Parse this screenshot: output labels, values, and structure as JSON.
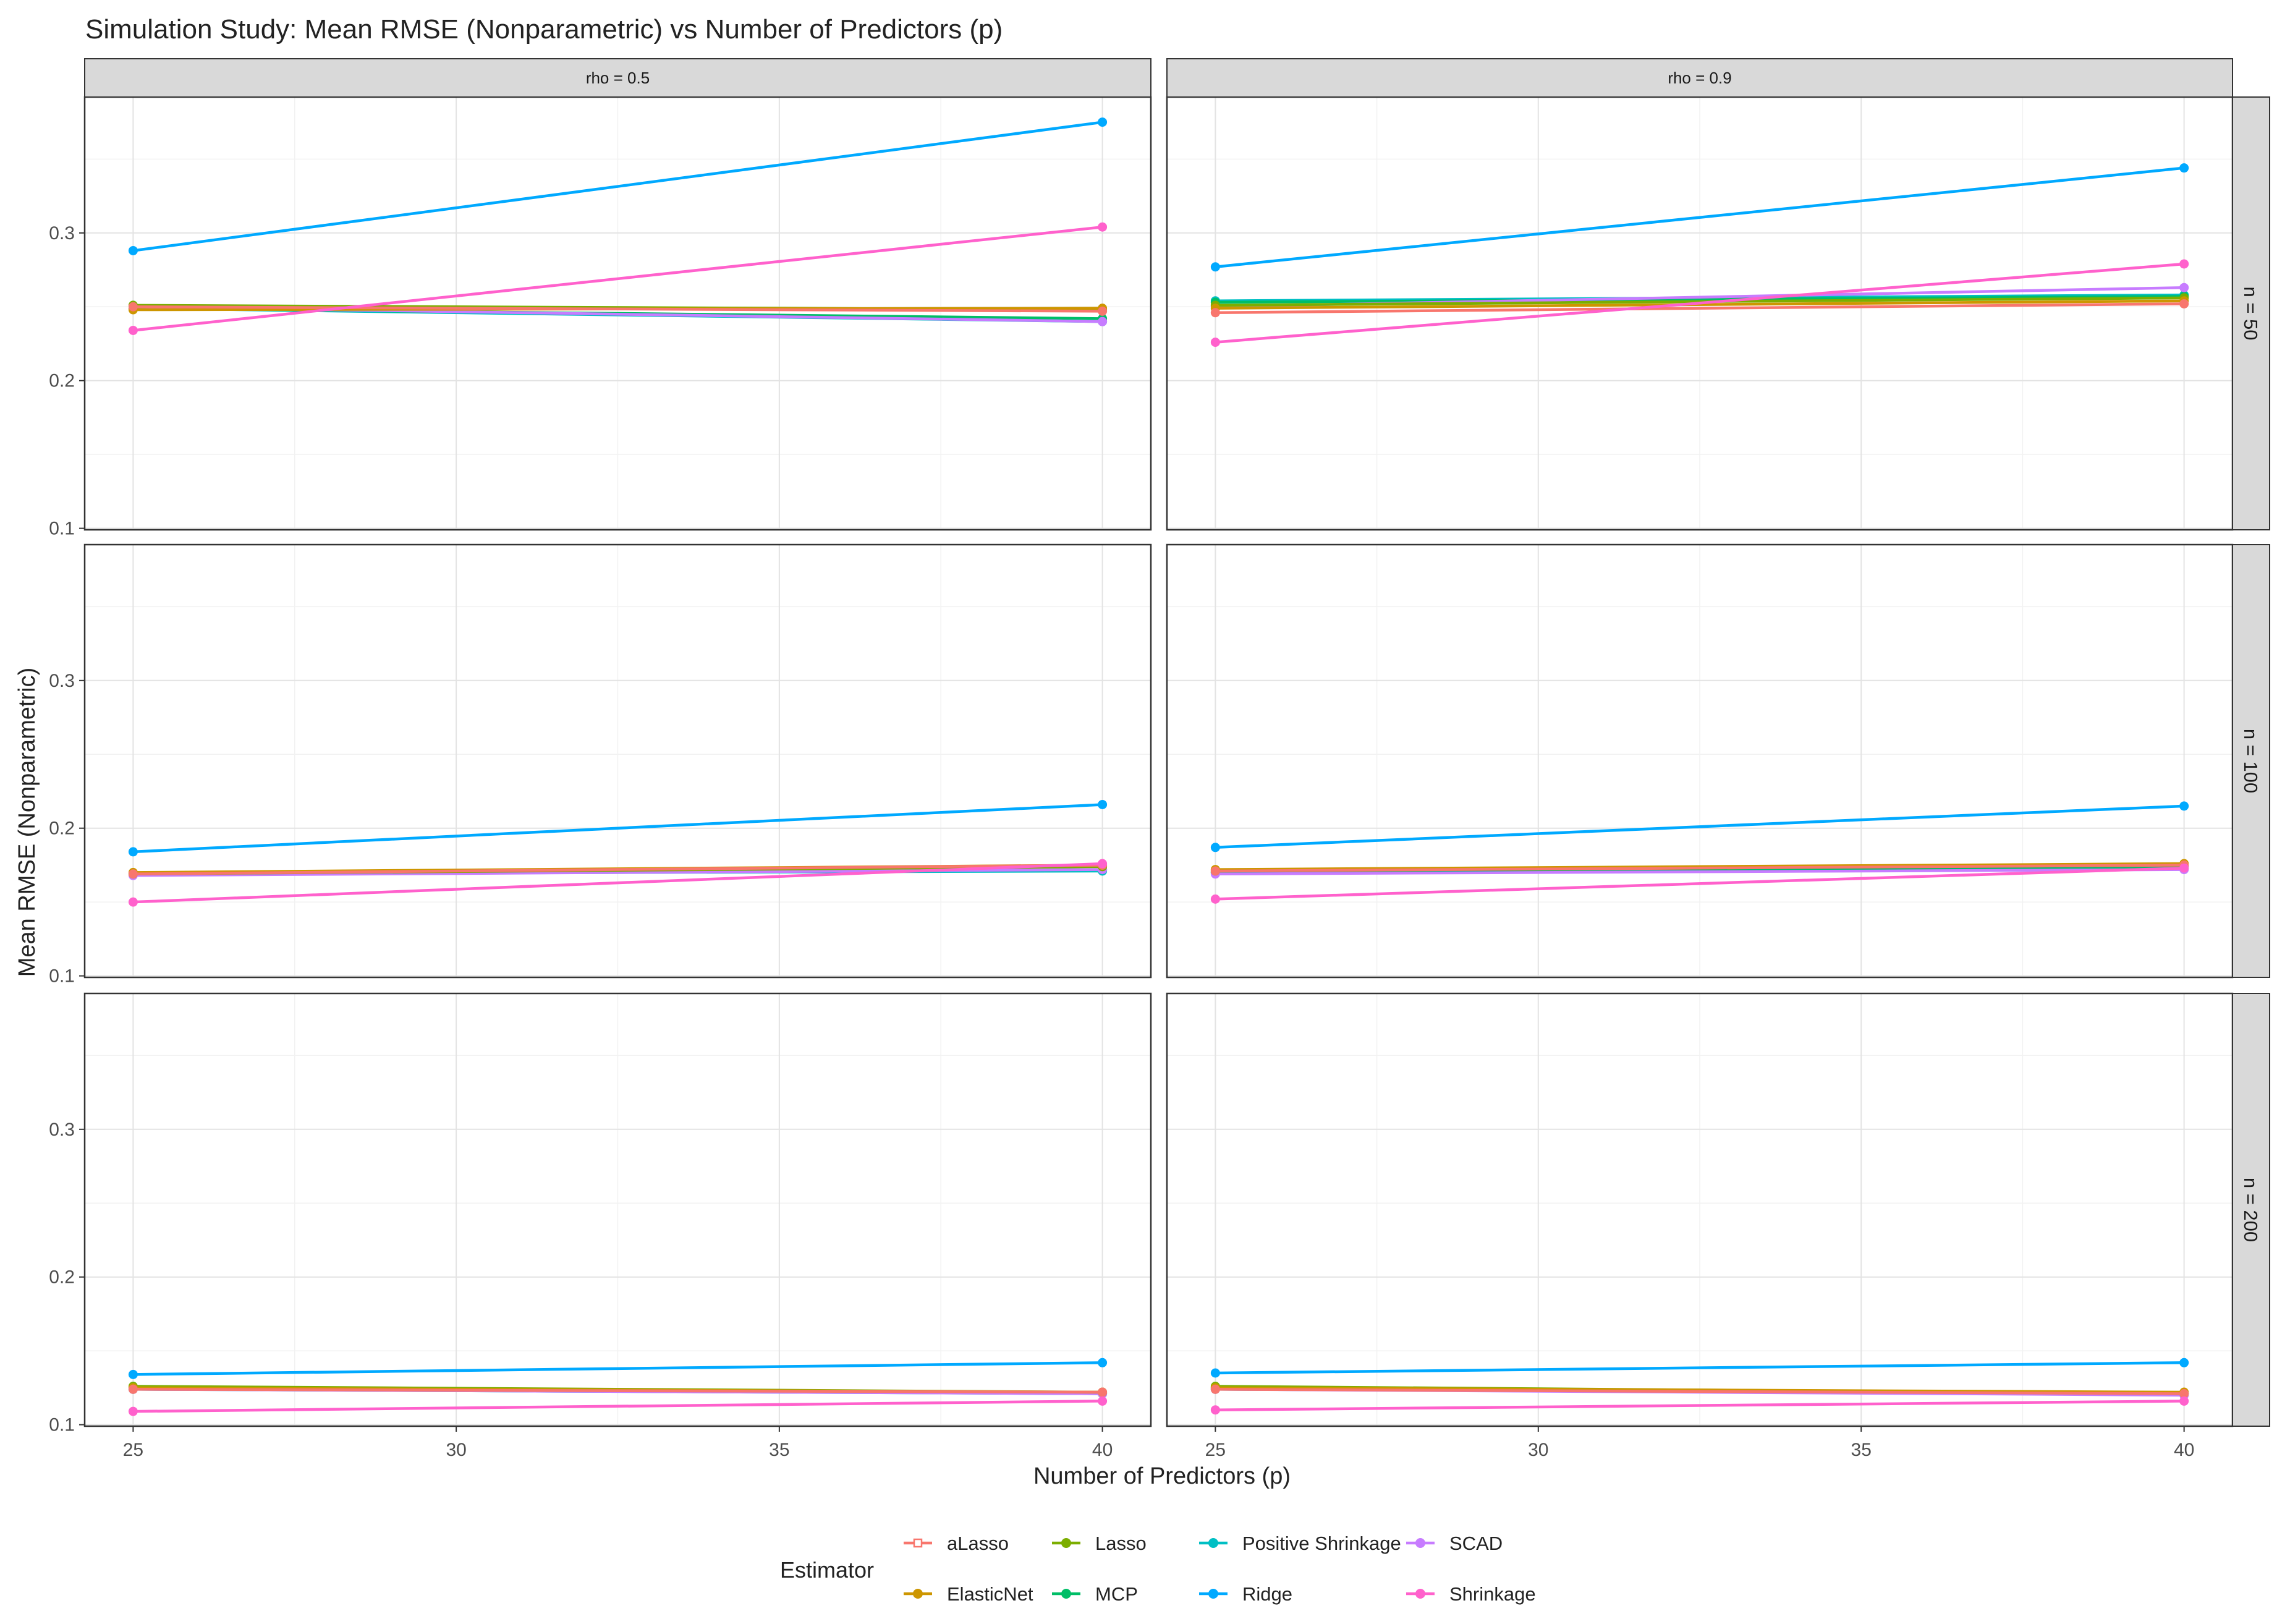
{
  "chart_data": {
    "type": "line",
    "title": "Simulation Study: Mean RMSE (Nonparametric) vs Number of Predictors (p)",
    "xlabel": "Number of Predictors (p)",
    "ylabel": "Mean RMSE (Nonparametric)",
    "x": [
      25,
      40
    ],
    "xlim": [
      24.25,
      40.75
    ],
    "ylim": [
      0.099,
      0.392
    ],
    "x_ticks": [
      25,
      30,
      35,
      40
    ],
    "x_tick_labels": [
      "25",
      "30",
      "35",
      "40"
    ],
    "y_ticks": [
      0.1,
      0.2,
      0.3
    ],
    "y_tick_labels": [
      "0.1",
      "0.2",
      "0.3"
    ],
    "col_strips": [
      "rho = 0.5",
      "rho = 0.9"
    ],
    "row_strips": [
      "n = 50",
      "n = 100",
      "n = 200"
    ],
    "legend": {
      "title": "Estimator",
      "position": "bottom",
      "entries": [
        "aLasso",
        "Lasso",
        "Positive Shrinkage",
        "SCAD",
        "ElasticNet",
        "MCP",
        "Ridge",
        "Shrinkage"
      ]
    },
    "colors": {
      "aLasso": "#F8766D",
      "ElasticNet": "#CD9600",
      "Lasso": "#7CAE00",
      "MCP": "#00BE67",
      "Positive Shrinkage": "#00BFC4",
      "Ridge": "#00A9FF",
      "SCAD": "#C77CFF",
      "Shrinkage": "#FF61CC"
    },
    "panels": [
      {
        "rho": "rho = 0.5",
        "n": "n = 50",
        "series": [
          {
            "name": "aLasso",
            "values": [
              0.25,
              0.247
            ]
          },
          {
            "name": "ElasticNet",
            "values": [
              0.248,
              0.249
            ]
          },
          {
            "name": "Lasso",
            "values": [
              0.251,
              0.248
            ]
          },
          {
            "name": "MCP",
            "values": [
              0.249,
              0.242
            ]
          },
          {
            "name": "Positive Shrinkage",
            "values": [
              0.249,
              0.24
            ]
          },
          {
            "name": "Ridge",
            "values": [
              0.288,
              0.375
            ]
          },
          {
            "name": "SCAD",
            "values": [
              0.25,
              0.24
            ]
          },
          {
            "name": "Shrinkage",
            "values": [
              0.234,
              0.304
            ]
          }
        ]
      },
      {
        "rho": "rho = 0.9",
        "n": "n = 50",
        "series": [
          {
            "name": "aLasso",
            "values": [
              0.246,
              0.252
            ]
          },
          {
            "name": "ElasticNet",
            "values": [
              0.249,
              0.254
            ]
          },
          {
            "name": "Lasso",
            "values": [
              0.251,
              0.256
            ]
          },
          {
            "name": "MCP",
            "values": [
              0.253,
              0.257
            ]
          },
          {
            "name": "Positive Shrinkage",
            "values": [
              0.254,
              0.258
            ]
          },
          {
            "name": "Ridge",
            "values": [
              0.277,
              0.344
            ]
          },
          {
            "name": "SCAD",
            "values": [
              0.25,
              0.263
            ]
          },
          {
            "name": "Shrinkage",
            "values": [
              0.226,
              0.279
            ]
          }
        ]
      },
      {
        "rho": "rho = 0.5",
        "n": "n = 100",
        "series": [
          {
            "name": "aLasso",
            "values": [
              0.169,
              0.175
            ]
          },
          {
            "name": "ElasticNet",
            "values": [
              0.17,
              0.175
            ]
          },
          {
            "name": "Lasso",
            "values": [
              0.169,
              0.174
            ]
          },
          {
            "name": "MCP",
            "values": [
              0.169,
              0.172
            ]
          },
          {
            "name": "Positive Shrinkage",
            "values": [
              0.169,
              0.171
            ]
          },
          {
            "name": "Ridge",
            "values": [
              0.184,
              0.216
            ]
          },
          {
            "name": "SCAD",
            "values": [
              0.168,
              0.172
            ]
          },
          {
            "name": "Shrinkage",
            "values": [
              0.15,
              0.176
            ]
          }
        ]
      },
      {
        "rho": "rho = 0.9",
        "n": "n = 100",
        "series": [
          {
            "name": "aLasso",
            "values": [
              0.171,
              0.175
            ]
          },
          {
            "name": "ElasticNet",
            "values": [
              0.172,
              0.176
            ]
          },
          {
            "name": "Lasso",
            "values": [
              0.171,
              0.175
            ]
          },
          {
            "name": "MCP",
            "values": [
              0.17,
              0.174
            ]
          },
          {
            "name": "Positive Shrinkage",
            "values": [
              0.17,
              0.173
            ]
          },
          {
            "name": "Ridge",
            "values": [
              0.187,
              0.215
            ]
          },
          {
            "name": "SCAD",
            "values": [
              0.169,
              0.172
            ]
          },
          {
            "name": "Shrinkage",
            "values": [
              0.152,
              0.173
            ]
          }
        ]
      },
      {
        "rho": "rho = 0.5",
        "n": "n = 200",
        "series": [
          {
            "name": "aLasso",
            "values": [
              0.124,
              0.122
            ]
          },
          {
            "name": "ElasticNet",
            "values": [
              0.125,
              0.122
            ]
          },
          {
            "name": "Lasso",
            "values": [
              0.126,
              0.122
            ]
          },
          {
            "name": "MCP",
            "values": [
              0.125,
              0.121
            ]
          },
          {
            "name": "Positive Shrinkage",
            "values": [
              0.124,
              0.121
            ]
          },
          {
            "name": "Ridge",
            "values": [
              0.134,
              0.142
            ]
          },
          {
            "name": "SCAD",
            "values": [
              0.124,
              0.121
            ]
          },
          {
            "name": "Shrinkage",
            "values": [
              0.109,
              0.116
            ]
          }
        ]
      },
      {
        "rho": "rho = 0.9",
        "n": "n = 200",
        "series": [
          {
            "name": "aLasso",
            "values": [
              0.124,
              0.121
            ]
          },
          {
            "name": "ElasticNet",
            "values": [
              0.125,
              0.122
            ]
          },
          {
            "name": "Lasso",
            "values": [
              0.126,
              0.121
            ]
          },
          {
            "name": "MCP",
            "values": [
              0.125,
              0.121
            ]
          },
          {
            "name": "Positive Shrinkage",
            "values": [
              0.124,
              0.121
            ]
          },
          {
            "name": "Ridge",
            "values": [
              0.135,
              0.142
            ]
          },
          {
            "name": "SCAD",
            "values": [
              0.124,
              0.12
            ]
          },
          {
            "name": "Shrinkage",
            "values": [
              0.11,
              0.116
            ]
          }
        ]
      }
    ]
  }
}
